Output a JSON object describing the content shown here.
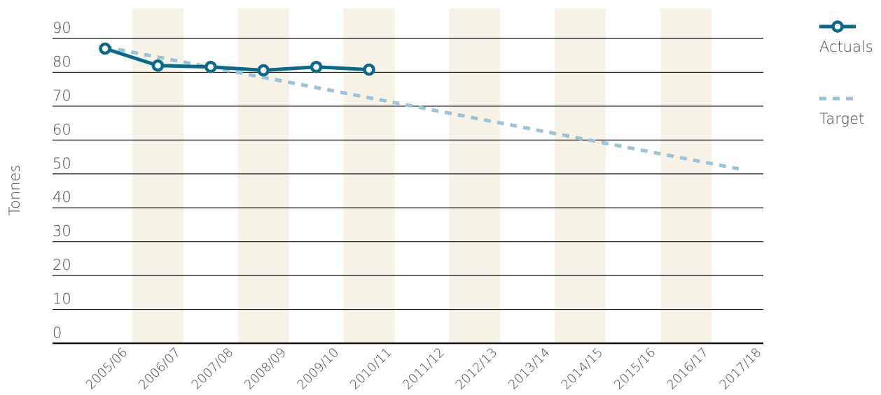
{
  "chart_data": {
    "type": "line",
    "y_label": "Tonnes",
    "categories": [
      "2005/06",
      "2006/07",
      "2007/08",
      "2008/09",
      "2009/10",
      "2010/11",
      "2011/12",
      "2012/13",
      "2013/14",
      "2014/15",
      "2015/16",
      "2016/17",
      "2017/18"
    ],
    "series": [
      {
        "name": "Actuals",
        "color": "#0b6a8a",
        "style": "solid",
        "marker": true,
        "values": [
          87,
          82,
          81.6,
          80.6,
          81.6,
          80.8,
          null,
          null,
          null,
          null,
          null,
          null,
          null
        ]
      },
      {
        "name": "Target",
        "color": "#9cc3d8",
        "style": "dashed",
        "marker": false,
        "values": [
          87.5,
          84.5,
          81.5,
          78.5,
          75.5,
          72.5,
          69.5,
          66.5,
          63.5,
          60.5,
          57.5,
          54.5,
          51.5
        ]
      }
    ],
    "ylim": [
      0,
      90
    ],
    "yticks": [
      0,
      10,
      20,
      30,
      40,
      50,
      60,
      70,
      80,
      90
    ],
    "grid": true,
    "legend": "right"
  }
}
